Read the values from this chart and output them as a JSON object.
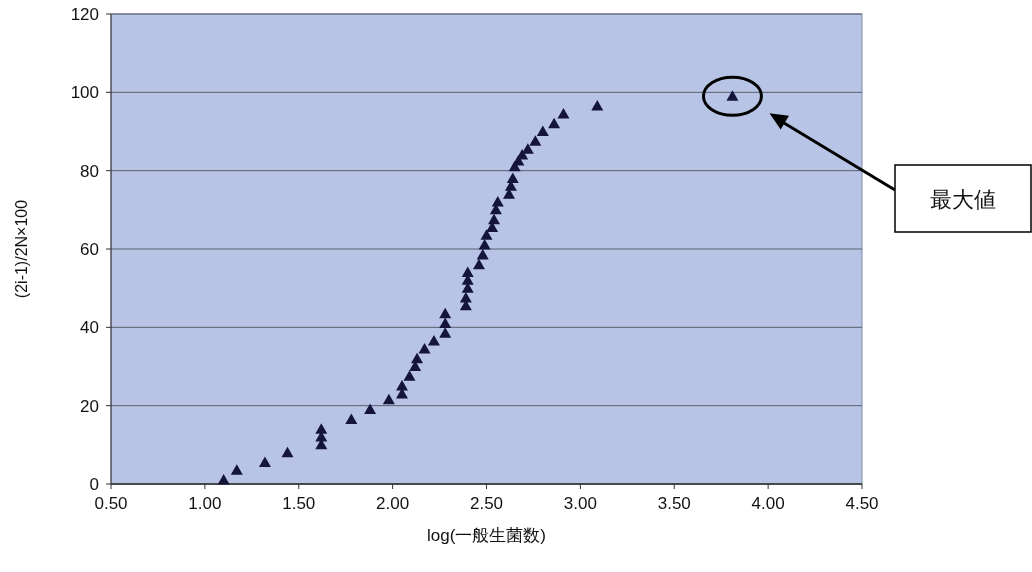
{
  "chart_data": {
    "type": "scatter",
    "xlabel": "log(一般生菌数)",
    "ylabel": "(2i-1)/2N×100",
    "xlim": [
      0.5,
      4.5
    ],
    "xticks": [
      {
        "value": 0.5,
        "label": "0.50"
      },
      {
        "value": 1,
        "label": "1.00"
      },
      {
        "value": 1.5,
        "label": "1.50"
      },
      {
        "value": 2,
        "label": "2.00"
      },
      {
        "value": 2.5,
        "label": "2.50"
      },
      {
        "value": 3,
        "label": "3.00"
      },
      {
        "value": 3.5,
        "label": "3.50"
      },
      {
        "value": 4,
        "label": "4.00"
      },
      {
        "value": 4.5,
        "label": "4.50"
      }
    ],
    "ylim": [
      0,
      120
    ],
    "yticks": [
      0,
      20,
      40,
      60,
      80,
      100,
      120
    ],
    "grid": "y",
    "marker": "triangle",
    "annotations": [
      "最大値"
    ],
    "series": [
      {
        "color": "#15153a",
        "x": [
          1.1,
          1.17,
          1.32,
          1.44,
          1.62,
          1.62,
          1.62,
          1.78,
          1.88,
          1.98,
          2.05,
          2.05,
          2.09,
          2.12,
          2.13,
          2.17,
          2.22,
          2.28,
          2.28,
          2.28,
          2.39,
          2.39,
          2.4,
          2.4,
          2.4,
          2.46,
          2.48,
          2.49,
          2.5,
          2.53,
          2.54,
          2.55,
          2.56,
          2.62,
          2.63,
          2.64,
          2.65,
          2.67,
          2.69,
          2.72,
          2.76,
          2.8,
          2.86,
          2.91,
          3.09,
          3.81
        ],
        "values": [
          1,
          3.5,
          5.5,
          8,
          10,
          12,
          14,
          16.5,
          19,
          21.5,
          23,
          25,
          27.5,
          30,
          32,
          34.5,
          36.5,
          38.5,
          41,
          43.5,
          45.5,
          47.5,
          50,
          52,
          54,
          56,
          58.5,
          61,
          63.5,
          65.5,
          67.5,
          70,
          72,
          74,
          76,
          78,
          81,
          82.5,
          84,
          85.5,
          87.5,
          90,
          92,
          94.5,
          96.5,
          99
        ]
      }
    ]
  }
}
